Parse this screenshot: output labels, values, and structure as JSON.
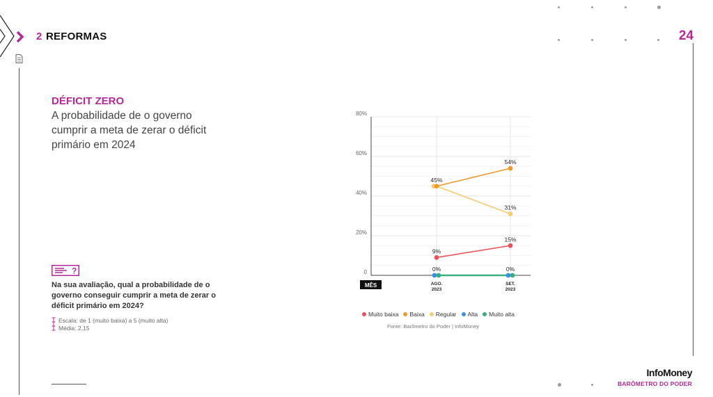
{
  "header": {
    "section_number": "2",
    "section_title": "REFORMAS",
    "page_number": "24",
    "accent_color": "#b5289a"
  },
  "main": {
    "title": "DÉFICIT ZERO",
    "description": "A probabilidade de o governo cumprir a meta de zerar o déficit primário em 2024",
    "question_badge": "?",
    "question": "Na sua avaliação, qual a probabilidade de o governo conseguir cumprir a meta de zerar o déficit primário em 2024?",
    "scale_note": "Escala: de 1 (muito baixa) a 5 (muito alta)",
    "mean_note": "Média: 2,15"
  },
  "chart_data": {
    "type": "line",
    "x_axis_tag": "MÊS",
    "categories": [
      {
        "line1": "AGO.",
        "line2": "2023"
      },
      {
        "line1": "SET.",
        "line2": "2023"
      }
    ],
    "y_ticks": [
      "0",
      "20%",
      "40%",
      "60%",
      "80%"
    ],
    "ylim": [
      0,
      80
    ],
    "series": [
      {
        "name": "Muito baixa",
        "color": "#e8525b",
        "values": [
          9,
          15
        ],
        "labels": [
          "9%",
          "15%"
        ]
      },
      {
        "name": "Baixa",
        "color": "#ef9a2e",
        "values": [
          45,
          54
        ],
        "labels": [
          "45%",
          "54%"
        ]
      },
      {
        "name": "Regular",
        "color": "#f5cc72",
        "values": [
          45,
          31
        ],
        "labels": [
          "",
          "31%"
        ]
      },
      {
        "name": "Alta",
        "color": "#3a8ee6",
        "values": [
          0,
          0
        ],
        "labels": [
          "0%",
          "0%"
        ]
      },
      {
        "name": "Muito alta",
        "color": "#35b07a",
        "values": [
          0,
          0
        ],
        "labels": [
          "",
          ""
        ]
      }
    ],
    "source": "Fonte: Barômetro do Poder | InfoMoney"
  },
  "footer": {
    "brand": "InfoMoney",
    "brand_sub": "BARÔMETRO DO PODER"
  },
  "icons": [
    "chevron-outline-icon",
    "chevron-right-icon",
    "document-icon",
    "question-badge-icon",
    "scale-icon"
  ]
}
